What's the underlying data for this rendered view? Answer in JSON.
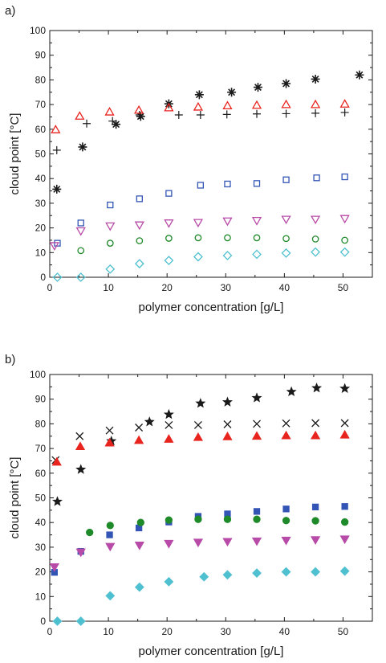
{
  "colors": {
    "black": "#1a1a1a",
    "red": "#e8241f",
    "blue": "#3355b5",
    "magenta": "#b84aa8",
    "green": "#1f8a2a",
    "cyan": "#4fc0d0"
  },
  "chart_data": [
    {
      "panel_label": "a)",
      "type": "scatter",
      "xlabel": "polymer concentration [g/L]",
      "ylabel": "cloud point [°C]",
      "xlim": [
        0,
        55
      ],
      "ylim": [
        0,
        100
      ],
      "xticks": [
        0,
        10,
        20,
        30,
        40,
        50
      ],
      "yticks": [
        0,
        10,
        20,
        30,
        40,
        50,
        60,
        70,
        80,
        90,
        100
      ],
      "grid": false,
      "series": [
        {
          "marker": "asterisk",
          "filled": false,
          "color": "black",
          "points": [
            [
              1.2,
              35.7
            ],
            [
              5.6,
              52.8
            ],
            [
              11.3,
              62.0
            ],
            [
              15.5,
              65.2
            ],
            [
              20.3,
              70.3
            ],
            [
              25.5,
              74.0
            ],
            [
              31.0,
              75.0
            ],
            [
              35.5,
              77.0
            ],
            [
              40.3,
              78.5
            ],
            [
              45.3,
              80.3
            ],
            [
              52.8,
              82.0
            ]
          ]
        },
        {
          "marker": "plus",
          "filled": false,
          "color": "black",
          "points": [
            [
              1.2,
              51.5
            ],
            [
              6.3,
              62.3
            ],
            [
              10.7,
              63.3
            ],
            [
              15.3,
              65.8
            ],
            [
              22.0,
              65.8
            ],
            [
              25.7,
              65.8
            ],
            [
              30.2,
              66.0
            ],
            [
              35.3,
              66.2
            ],
            [
              40.3,
              66.3
            ],
            [
              45.3,
              66.5
            ],
            [
              50.3,
              66.8
            ]
          ]
        },
        {
          "marker": "triangle-up",
          "filled": false,
          "color": "red",
          "points": [
            [
              1.0,
              59.8
            ],
            [
              5.1,
              65.3
            ],
            [
              10.2,
              67.0
            ],
            [
              15.2,
              67.7
            ],
            [
              20.3,
              68.7
            ],
            [
              25.3,
              69.0
            ],
            [
              30.3,
              69.5
            ],
            [
              35.3,
              69.7
            ],
            [
              40.3,
              70.0
            ],
            [
              45.3,
              70.0
            ],
            [
              50.3,
              70.2
            ]
          ]
        },
        {
          "marker": "square",
          "filled": false,
          "color": "blue",
          "points": [
            [
              1.3,
              13.8
            ],
            [
              5.3,
              22.0
            ],
            [
              10.3,
              29.3
            ],
            [
              15.3,
              31.8
            ],
            [
              20.3,
              34.0
            ],
            [
              25.7,
              37.3
            ],
            [
              30.3,
              37.8
            ],
            [
              35.3,
              38.0
            ],
            [
              40.3,
              39.5
            ],
            [
              45.5,
              40.3
            ],
            [
              50.3,
              40.7
            ]
          ]
        },
        {
          "marker": "triangle-down",
          "filled": false,
          "color": "magenta",
          "points": [
            [
              0.8,
              12.8
            ],
            [
              5.3,
              18.8
            ],
            [
              10.3,
              20.8
            ],
            [
              15.3,
              21.2
            ],
            [
              20.3,
              22.0
            ],
            [
              25.3,
              22.2
            ],
            [
              30.3,
              22.8
            ],
            [
              35.3,
              23.0
            ],
            [
              40.3,
              23.5
            ],
            [
              45.3,
              23.5
            ],
            [
              50.3,
              23.8
            ]
          ]
        },
        {
          "marker": "circle",
          "filled": false,
          "color": "green",
          "points": [
            [
              5.3,
              10.8
            ],
            [
              10.3,
              13.8
            ],
            [
              15.3,
              14.8
            ],
            [
              20.3,
              15.8
            ],
            [
              25.3,
              16.0
            ],
            [
              30.3,
              16.0
            ],
            [
              35.3,
              16.0
            ],
            [
              40.3,
              15.7
            ],
            [
              45.3,
              15.5
            ],
            [
              50.3,
              15.0
            ]
          ]
        },
        {
          "marker": "diamond",
          "filled": false,
          "color": "cyan",
          "points": [
            [
              1.3,
              0.0
            ],
            [
              5.3,
              0.0
            ],
            [
              10.3,
              3.3
            ],
            [
              15.3,
              5.5
            ],
            [
              20.3,
              6.8
            ],
            [
              25.3,
              8.3
            ],
            [
              30.3,
              8.8
            ],
            [
              35.3,
              9.3
            ],
            [
              40.3,
              9.8
            ],
            [
              45.3,
              10.2
            ],
            [
              50.3,
              10.2
            ]
          ]
        }
      ]
    },
    {
      "panel_label": "b)",
      "type": "scatter",
      "xlabel": "polymer concentration [g/L]",
      "ylabel": "cloud point [°C]",
      "xlim": [
        0,
        55
      ],
      "ylim": [
        0,
        100
      ],
      "xticks": [
        0,
        10,
        20,
        30,
        40,
        50
      ],
      "yticks": [
        0,
        10,
        20,
        30,
        40,
        50,
        60,
        70,
        80,
        90,
        100
      ],
      "grid": false,
      "series": [
        {
          "marker": "star",
          "filled": true,
          "color": "black",
          "points": [
            [
              1.3,
              48.5
            ],
            [
              5.3,
              61.5
            ],
            [
              10.5,
              73.0
            ],
            [
              17.0,
              80.8
            ],
            [
              20.3,
              83.8
            ],
            [
              25.7,
              88.3
            ],
            [
              30.3,
              88.8
            ],
            [
              35.3,
              90.5
            ],
            [
              41.2,
              93.0
            ],
            [
              45.5,
              94.5
            ],
            [
              50.3,
              94.3
            ]
          ]
        },
        {
          "marker": "cross",
          "filled": false,
          "color": "black",
          "points": [
            [
              1.0,
              65.3
            ],
            [
              5.1,
              75.0
            ],
            [
              10.2,
              77.3
            ],
            [
              15.2,
              78.5
            ],
            [
              20.3,
              79.5
            ],
            [
              25.3,
              79.5
            ],
            [
              30.3,
              79.8
            ],
            [
              35.3,
              80.0
            ],
            [
              40.3,
              80.2
            ],
            [
              45.3,
              80.3
            ],
            [
              50.3,
              80.3
            ]
          ]
        },
        {
          "marker": "triangle-up",
          "filled": true,
          "color": "red",
          "points": [
            [
              1.2,
              64.5
            ],
            [
              5.2,
              70.8
            ],
            [
              10.2,
              72.3
            ],
            [
              15.2,
              73.3
            ],
            [
              20.3,
              73.8
            ],
            [
              25.3,
              74.5
            ],
            [
              30.3,
              74.8
            ],
            [
              35.3,
              75.0
            ],
            [
              40.3,
              75.2
            ],
            [
              45.3,
              75.2
            ],
            [
              50.3,
              75.5
            ]
          ]
        },
        {
          "marker": "square",
          "filled": true,
          "color": "blue",
          "points": [
            [
              0.8,
              19.8
            ],
            [
              5.3,
              28.3
            ],
            [
              10.2,
              35.0
            ],
            [
              15.2,
              37.8
            ],
            [
              20.3,
              40.2
            ],
            [
              25.3,
              42.5
            ],
            [
              30.3,
              43.5
            ],
            [
              35.3,
              44.5
            ],
            [
              40.3,
              45.5
            ],
            [
              45.3,
              46.3
            ],
            [
              50.3,
              46.5
            ]
          ]
        },
        {
          "marker": "circle",
          "filled": true,
          "color": "green",
          "points": [
            [
              6.8,
              36.0
            ],
            [
              10.3,
              38.8
            ],
            [
              15.5,
              40.0
            ],
            [
              20.3,
              41.0
            ],
            [
              25.3,
              41.3
            ],
            [
              30.3,
              41.3
            ],
            [
              35.3,
              41.3
            ],
            [
              40.3,
              40.8
            ],
            [
              45.3,
              40.7
            ],
            [
              50.3,
              40.2
            ]
          ]
        },
        {
          "marker": "triangle-down",
          "filled": true,
          "color": "magenta",
          "points": [
            [
              0.8,
              22.0
            ],
            [
              5.3,
              28.0
            ],
            [
              10.3,
              30.3
            ],
            [
              15.3,
              30.8
            ],
            [
              20.3,
              31.5
            ],
            [
              25.3,
              32.0
            ],
            [
              30.3,
              32.3
            ],
            [
              35.3,
              32.5
            ],
            [
              40.3,
              32.8
            ],
            [
              45.3,
              33.0
            ],
            [
              50.3,
              33.3
            ]
          ]
        },
        {
          "marker": "diamond",
          "filled": true,
          "color": "cyan",
          "points": [
            [
              1.3,
              0.0
            ],
            [
              5.3,
              0.0
            ],
            [
              10.3,
              10.3
            ],
            [
              15.3,
              13.8
            ],
            [
              20.3,
              16.0
            ],
            [
              26.3,
              18.0
            ],
            [
              30.3,
              18.8
            ],
            [
              35.3,
              19.5
            ],
            [
              40.3,
              20.0
            ],
            [
              45.3,
              20.0
            ],
            [
              50.3,
              20.3
            ]
          ]
        }
      ]
    }
  ]
}
